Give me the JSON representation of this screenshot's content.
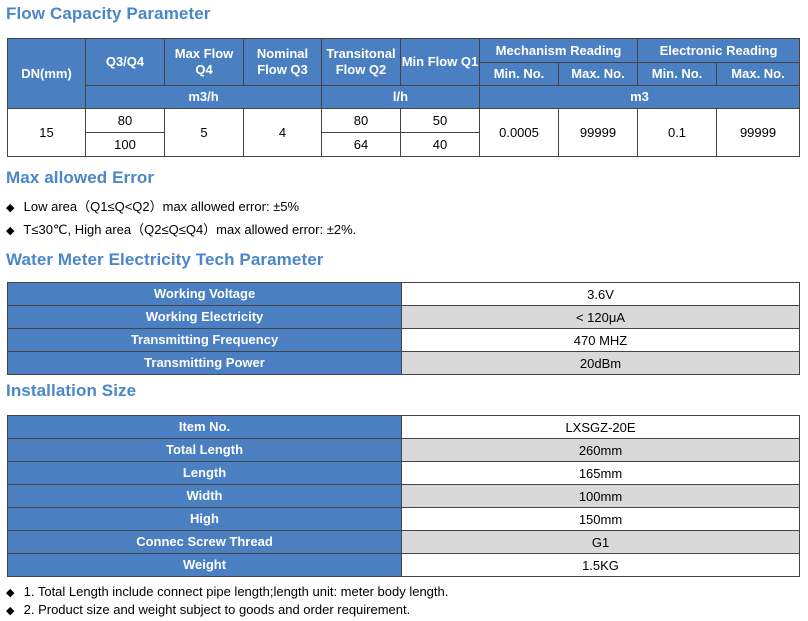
{
  "flow": {
    "title": "Flow Capacity Parameter",
    "headers": {
      "dn": "DN(mm)",
      "q3q4": "Q3/Q4",
      "max_flow": "Max Flow Q4",
      "nominal_flow": "Nominal Flow Q3",
      "transitional": "Transitonal Flow Q2",
      "min_flow": "Min Flow Q1",
      "mechanism": "Mechanism Reading",
      "electronic": "Electronic Reading",
      "min_no": "Min. No.",
      "max_no": "Max. No.",
      "unit_m3h": "m3/h",
      "unit_lh": "l/h",
      "unit_m3": "m3"
    },
    "row": {
      "dn": "15",
      "q3q4": [
        "80",
        "100"
      ],
      "q4": "5",
      "q3": "4",
      "q2": [
        "80",
        "64"
      ],
      "q1": [
        "50",
        "40"
      ],
      "mech_min": "0.0005",
      "mech_max": "99999",
      "elec_min": "0.1",
      "elec_max": "99999"
    }
  },
  "error": {
    "title": "Max allowed Error",
    "lines": [
      "Low area（Q1≤Q<Q2）max allowed error: ±5%",
      "T≤30℃, High area（Q2≤Q≤Q4）max allowed error: ±2%."
    ]
  },
  "electric": {
    "title": "Water Meter Electricity Tech Parameter",
    "rows": [
      {
        "label": "Working Voltage",
        "value": "3.6V"
      },
      {
        "label": "Working Electricity",
        "value": "< 120μA"
      },
      {
        "label": "Transmitting Frequency",
        "value": "470 MHZ"
      },
      {
        "label": "Transmitting Power",
        "value": "20dBm"
      }
    ]
  },
  "install": {
    "title": "Installation Size",
    "rows": [
      {
        "label": "Item No.",
        "value": "LXSGZ-20E"
      },
      {
        "label": "Total Length",
        "value": "260mm"
      },
      {
        "label": "Length",
        "value": "165mm"
      },
      {
        "label": "Width",
        "value": "100mm"
      },
      {
        "label": "High",
        "value": "150mm"
      },
      {
        "label": "Connec Screw Thread",
        "value": "G1"
      },
      {
        "label": "Weight",
        "value": "1.5KG"
      }
    ],
    "notes": [
      "1. Total Length include connect pipe length;length unit: meter body length.",
      "2. Product size and weight subject to goods and order requirement."
    ]
  }
}
